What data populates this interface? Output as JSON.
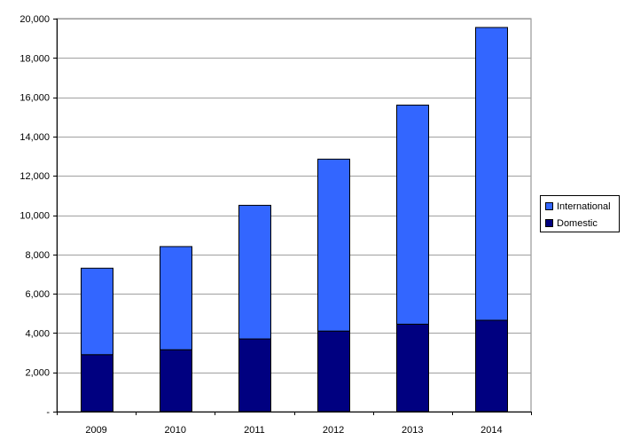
{
  "chart_data": {
    "type": "bar",
    "stacked": true,
    "categories": [
      "2009",
      "2010",
      "2011",
      "2012",
      "2013",
      "2014"
    ],
    "series": [
      {
        "name": "Domestic",
        "color": "#000080",
        "values": [
          2900,
          3150,
          3700,
          4100,
          4450,
          4650
        ]
      },
      {
        "name": "International",
        "color": "#3366ff",
        "values": [
          4400,
          5250,
          6800,
          8750,
          11150,
          14900
        ]
      }
    ],
    "totals": [
      7300,
      8400,
      10500,
      12850,
      15600,
      19550
    ],
    "ylim": [
      0,
      20000
    ],
    "yticks": [
      0,
      2000,
      4000,
      6000,
      8000,
      10000,
      12000,
      14000,
      16000,
      18000,
      20000
    ],
    "ytick_labels": [
      "-",
      "2,000",
      "4,000",
      "6,000",
      "8,000",
      "10,000",
      "12,000",
      "14,000",
      "16,000",
      "18,000",
      "20,000"
    ],
    "grid": true,
    "legend_position": "right",
    "title": "",
    "xlabel": "",
    "ylabel": ""
  },
  "legend": {
    "items": [
      {
        "label": "International",
        "color": "#3366ff"
      },
      {
        "label": "Domestic",
        "color": "#000080"
      }
    ]
  }
}
